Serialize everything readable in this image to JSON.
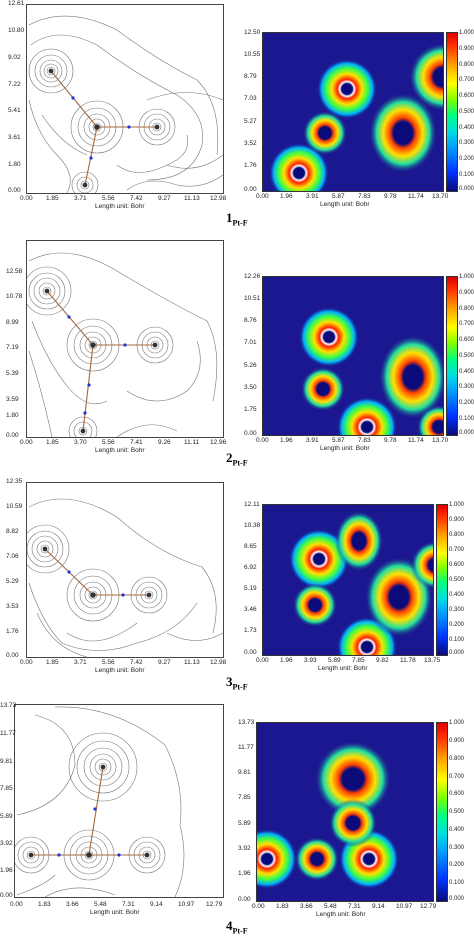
{
  "xunit_label": "Length unit: Bohr",
  "colorbar_ticks": [
    "1.000",
    "0.900",
    "0.800",
    "0.700",
    "0.600",
    "0.500",
    "0.400",
    "0.300",
    "0.200",
    "0.100",
    "0.000"
  ],
  "panels": [
    {
      "num": "1",
      "sub": "Pt-F",
      "contour_y": [
        "12.61",
        "10.80",
        "9.02",
        "7.22",
        "5.41",
        "3.61",
        "1.80",
        "0.00"
      ],
      "contour_x": [
        "0.00",
        "1.85",
        "3.71",
        "5.56",
        "7.42",
        "9.27",
        "11.13",
        "12.98"
      ],
      "heat_y": [
        "12.50",
        "10.55",
        "8.79",
        "7.03",
        "5.27",
        "3.52",
        "1.76",
        "0.00"
      ],
      "heat_x": [
        "0.00",
        "1.96",
        "3.91",
        "5.87",
        "7.83",
        "9.78",
        "11.74",
        "13.70"
      ]
    },
    {
      "num": "2",
      "sub": "Pt-F",
      "contour_y": [
        "12.58",
        "10.78",
        "8.99",
        "7.19",
        "5.39",
        "3.59",
        "1.80",
        "0.00"
      ],
      "contour_x": [
        "0.00",
        "1.85",
        "3.70",
        "5.56",
        "7.41",
        "9.26",
        "11.11",
        "12.96"
      ],
      "heat_y": [
        "12.26",
        "10.51",
        "8.76",
        "7.01",
        "5.26",
        "3.50",
        "1.75",
        "0.00"
      ],
      "heat_x": [
        "0.00",
        "1.96",
        "3.91",
        "5.87",
        "7.83",
        "9.78",
        "11.74",
        "13.70"
      ]
    },
    {
      "num": "3",
      "sub": "Pt-F",
      "contour_y": [
        "12.35",
        "10.59",
        "8.82",
        "7.06",
        "5.29",
        "3.53",
        "1.76",
        "0.00"
      ],
      "contour_x": [
        "0.00",
        "1.85",
        "3.71",
        "5.56",
        "7.42",
        "9.27",
        "11.13",
        "12.98"
      ],
      "heat_y": [
        "12.11",
        "10.38",
        "8.65",
        "6.92",
        "5.19",
        "3.46",
        "1.73",
        "0.00"
      ],
      "heat_x": [
        "0.00",
        "1.96",
        "3.93",
        "5.89",
        "7.85",
        "9.82",
        "11.78",
        "13.75"
      ]
    },
    {
      "num": "4",
      "sub": "Pt-F",
      "contour_y": [
        "13.73",
        "11.77",
        "9.81",
        "7.85",
        "5.89",
        "3.92",
        "1.96",
        "0.00"
      ],
      "contour_x": [
        "0.00",
        "1.83",
        "3.66",
        "5.48",
        "7.31",
        "9.14",
        "10.97",
        "12.79"
      ],
      "heat_y": [
        "13.73",
        "11.77",
        "9.81",
        "7.85",
        "5.89",
        "3.92",
        "1.96",
        "0.00"
      ],
      "heat_x": [
        "0.00",
        "1.83",
        "3.66",
        "5.48",
        "7.31",
        "9.14",
        "10.97",
        "12.79"
      ]
    }
  ]
}
